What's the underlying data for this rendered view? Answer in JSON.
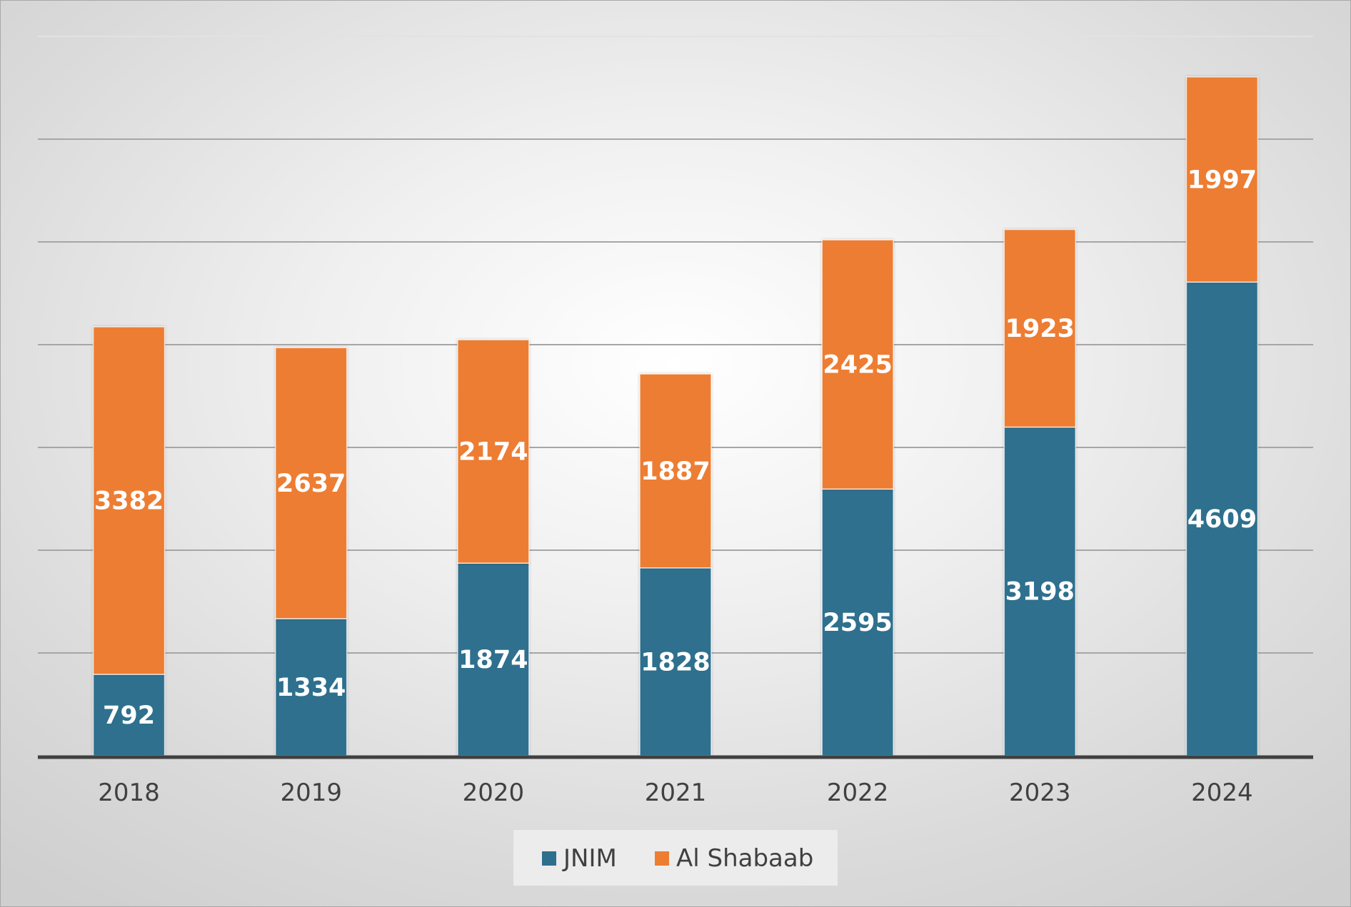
{
  "chart_data": {
    "type": "bar",
    "stacked": true,
    "categories": [
      "2018",
      "2019",
      "2020",
      "2021",
      "2022",
      "2023",
      "2024"
    ],
    "series": [
      {
        "name": "JNIM",
        "color": "#2e6f8e",
        "values": [
          792,
          1334,
          1874,
          1828,
          2595,
          3198,
          4609
        ]
      },
      {
        "name": "Al Shabaab",
        "color": "#ed7d31",
        "values": [
          3382,
          2637,
          2174,
          1887,
          2425,
          1923,
          1997
        ]
      }
    ],
    "ylim": [
      0,
      7000
    ],
    "ytick_step": 1000,
    "grid": true,
    "legend_position": "bottom",
    "data_labels": true
  }
}
